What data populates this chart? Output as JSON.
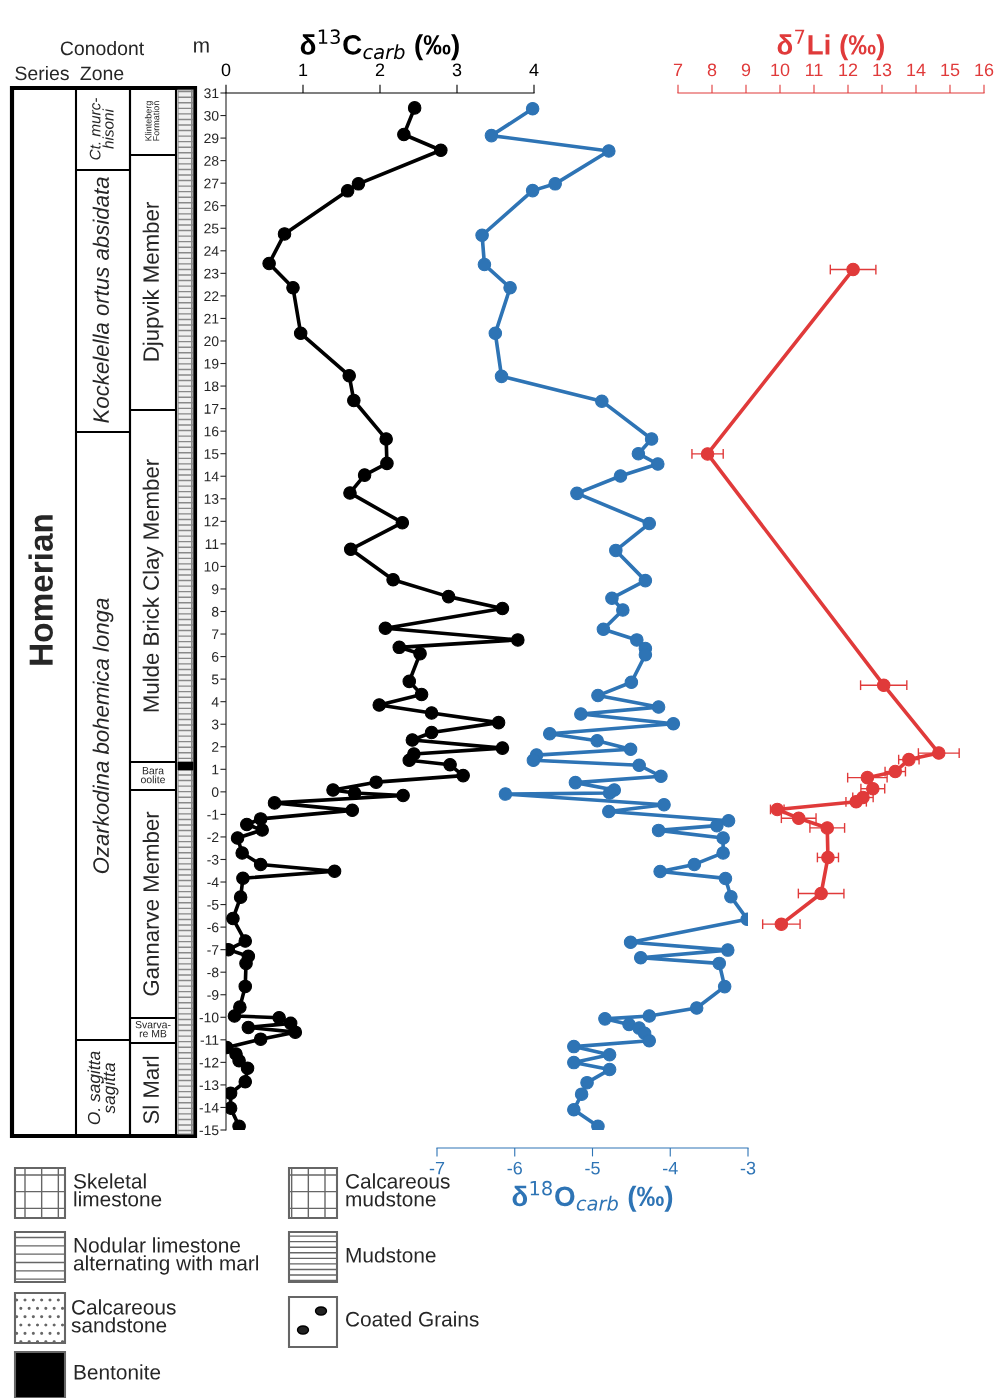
{
  "chart_data": [
    {
      "type": "line",
      "xlabel": "δ$^{13}$C$_{carb}$ (‰)",
      "ylabel": "m",
      "xlim": [
        0,
        4
      ],
      "xticks": [
        0,
        1,
        2,
        3,
        4
      ],
      "ylim": [
        -15,
        31
      ],
      "yticks": [
        -15,
        -14,
        -13,
        -12,
        -11,
        -10,
        -9,
        -8,
        -7,
        -6,
        -5,
        -4,
        -3,
        -2,
        -1,
        0,
        1,
        2,
        3,
        4,
        5,
        6,
        7,
        8,
        9,
        10,
        11,
        12,
        13,
        14,
        15,
        16,
        17,
        18,
        19,
        20,
        21,
        22,
        23,
        24,
        25,
        26,
        27,
        28,
        29,
        30,
        31
      ],
      "marker": "circle",
      "line_style": "solid",
      "grid": false,
      "series": [
        {
          "color": "#000000",
          "x": [
            2.45,
            2.31,
            2.79,
            1.72,
            1.58,
            0.76,
            0.56,
            0.87,
            0.97,
            1.6,
            1.66,
            2.08,
            2.09,
            1.8,
            1.61,
            2.29,
            1.62,
            2.17,
            2.89,
            3.59,
            2.07,
            3.79,
            2.25,
            2.52,
            2.38,
            2.54,
            1.99,
            2.67,
            3.54,
            2.67,
            2.42,
            3.59,
            2.44,
            2.38,
            2.91,
            3.08,
            1.95,
            1.39,
            1.67,
            2.3,
            0.63,
            1.64,
            0.45,
            0.27,
            0.47,
            0.15,
            0.21,
            0.45,
            1.41,
            0.22,
            0.19,
            0.09,
            0.25,
            0.03,
            0.29,
            0.26,
            0.25,
            0.18,
            0.11,
            0.69,
            0.84,
            0.29,
            0.9,
            0.45,
            0.01,
            0.13,
            0.17,
            0.28,
            0.25,
            0.06,
            0.06,
            0.17
          ],
          "values": [
            30.34,
            29.16,
            28.46,
            26.97,
            26.66,
            24.75,
            23.44,
            22.36,
            20.34,
            18.46,
            17.36,
            15.65,
            14.57,
            14.05,
            13.26,
            11.94,
            10.76,
            9.41,
            8.66,
            8.13,
            7.26,
            6.74,
            6.41,
            6.13,
            4.9,
            4.32,
            3.85,
            3.5,
            3.07,
            2.63,
            2.3,
            1.94,
            1.68,
            1.4,
            1.2,
            0.72,
            0.43,
            0.08,
            -0.05,
            -0.16,
            -0.49,
            -0.82,
            -1.2,
            -1.45,
            -1.69,
            -2.05,
            -2.71,
            -3.22,
            -3.52,
            -3.83,
            -4.67,
            -5.62,
            -6.62,
            -7.0,
            -7.29,
            -7.61,
            -8.63,
            -9.55,
            -9.94,
            -10.02,
            -10.27,
            -10.45,
            -10.66,
            -10.97,
            -11.34,
            -11.63,
            -11.93,
            -12.26,
            -12.86,
            -13.37,
            -14.03,
            -14.83
          ]
        }
      ],
      "annotations": [
        "Conodont",
        "Series",
        "Zone",
        "Homerian",
        "Ct. murc-\nhisoni",
        "Kockelella ortus absidata",
        "Ozarkodina bohemica longa",
        "O. sagitta\nsagitta",
        "Klinteberg\nFormation",
        "Djupvik Member",
        "Mulde Brick Clay Member",
        "Bara\noolite",
        "Gannarve Member",
        "Svarva-\nre MB",
        "Sl Marl",
        "Skeletal\nlimestone",
        "Nodular limestone\nalternating with marl",
        "Calcareous\nsandstone",
        "Bentonite",
        "Calcareous\nmudstone",
        "Mudstone",
        "Coated Grains"
      ]
    },
    {
      "type": "line",
      "xlabel": "δ$^{18}$O$_{carb}$ (‰)",
      "xlim": [
        -7,
        -3
      ],
      "xticks": [
        -7,
        -6,
        -5,
        -4,
        -3
      ],
      "ylim": [
        -15,
        31
      ],
      "tick_labels": "x",
      "marker": "circle",
      "line_style": "solid",
      "grid": false,
      "series": [
        {
          "color": "#2e74b5",
          "x": [
            -5.77,
            -6.3,
            -4.79,
            -5.48,
            -5.77,
            -6.42,
            -6.39,
            -6.06,
            -6.25,
            -6.17,
            -4.88,
            -4.24,
            -4.41,
            -4.16,
            -4.64,
            -5.2,
            -4.27,
            -4.7,
            -4.32,
            -4.75,
            -4.61,
            -4.86,
            -4.43,
            -4.32,
            -4.32,
            -4.5,
            -4.93,
            -4.15,
            -5.15,
            -3.96,
            -5.55,
            -4.94,
            -4.51,
            -5.72,
            -5.76,
            -4.4,
            -4.12,
            -5.22,
            -4.72,
            -4.78,
            -6.12,
            -4.08,
            -4.79,
            -3.25,
            -3.4,
            -4.15,
            -3.32,
            -3.32,
            -3.69,
            -4.13,
            -3.29,
            -3.22,
            -3.01,
            -4.51,
            -3.26,
            -4.38,
            -3.37,
            -3.3,
            -3.66,
            -4.27,
            -4.84,
            -4.53,
            -4.4,
            -4.33,
            -4.27,
            -5.24,
            -4.78,
            -5.24,
            -4.78,
            -5.07,
            -5.14,
            -5.24,
            -4.93
          ],
          "values": [
            30.3,
            29.11,
            28.43,
            26.97,
            26.67,
            24.69,
            23.39,
            22.36,
            20.34,
            18.43,
            17.33,
            15.65,
            15.0,
            14.54,
            14.01,
            13.24,
            11.9,
            10.71,
            9.37,
            8.59,
            8.07,
            7.21,
            6.74,
            6.36,
            6.08,
            4.86,
            4.27,
            3.76,
            3.45,
            3.02,
            2.58,
            2.27,
            1.89,
            1.63,
            1.4,
            1.18,
            0.69,
            0.41,
            0.08,
            -0.05,
            -0.1,
            -0.57,
            -0.87,
            -1.28,
            -1.5,
            -1.71,
            -2.05,
            -2.71,
            -3.22,
            -3.53,
            -3.84,
            -4.65,
            -5.65,
            -6.67,
            -7.02,
            -7.36,
            -7.61,
            -8.64,
            -9.59,
            -9.94,
            -10.07,
            -10.32,
            -10.48,
            -10.71,
            -11.04,
            -11.3,
            -11.66,
            -12.01,
            -12.32,
            -12.9,
            -13.41,
            -14.1,
            -14.83
          ]
        }
      ]
    },
    {
      "type": "line",
      "xlabel": "δ$^{7}$Li (‰)",
      "xlim": [
        7,
        16
      ],
      "xticks": [
        7,
        8,
        9,
        10,
        11,
        12,
        13,
        14,
        15,
        16
      ],
      "ylim": [
        -15,
        31
      ],
      "tick_labels": "x",
      "marker": "circle",
      "line_style": "solid",
      "grid": false,
      "series": [
        {
          "color": "#e03a3a",
          "x": [
            12.15,
            7.87,
            13.05,
            14.67,
            13.79,
            13.39,
            12.57,
            12.73,
            12.44,
            12.24,
            9.92,
            10.55,
            11.39,
            11.41,
            11.21,
            10.04
          ],
          "values": [
            23.17,
            14.99,
            4.73,
            1.72,
            1.43,
            0.9,
            0.63,
            0.14,
            -0.25,
            -0.44,
            -0.78,
            -1.17,
            -1.6,
            -2.91,
            -4.51,
            -5.87
          ],
          "xerrors": [
            0.67,
            0.46,
            0.68,
            0.6,
            0.3,
            0.3,
            0.58,
            0.35,
            0.3,
            0.3,
            0.2,
            0.51,
            0.51,
            0.31,
            0.67,
            0.55
          ]
        }
      ]
    }
  ]
}
